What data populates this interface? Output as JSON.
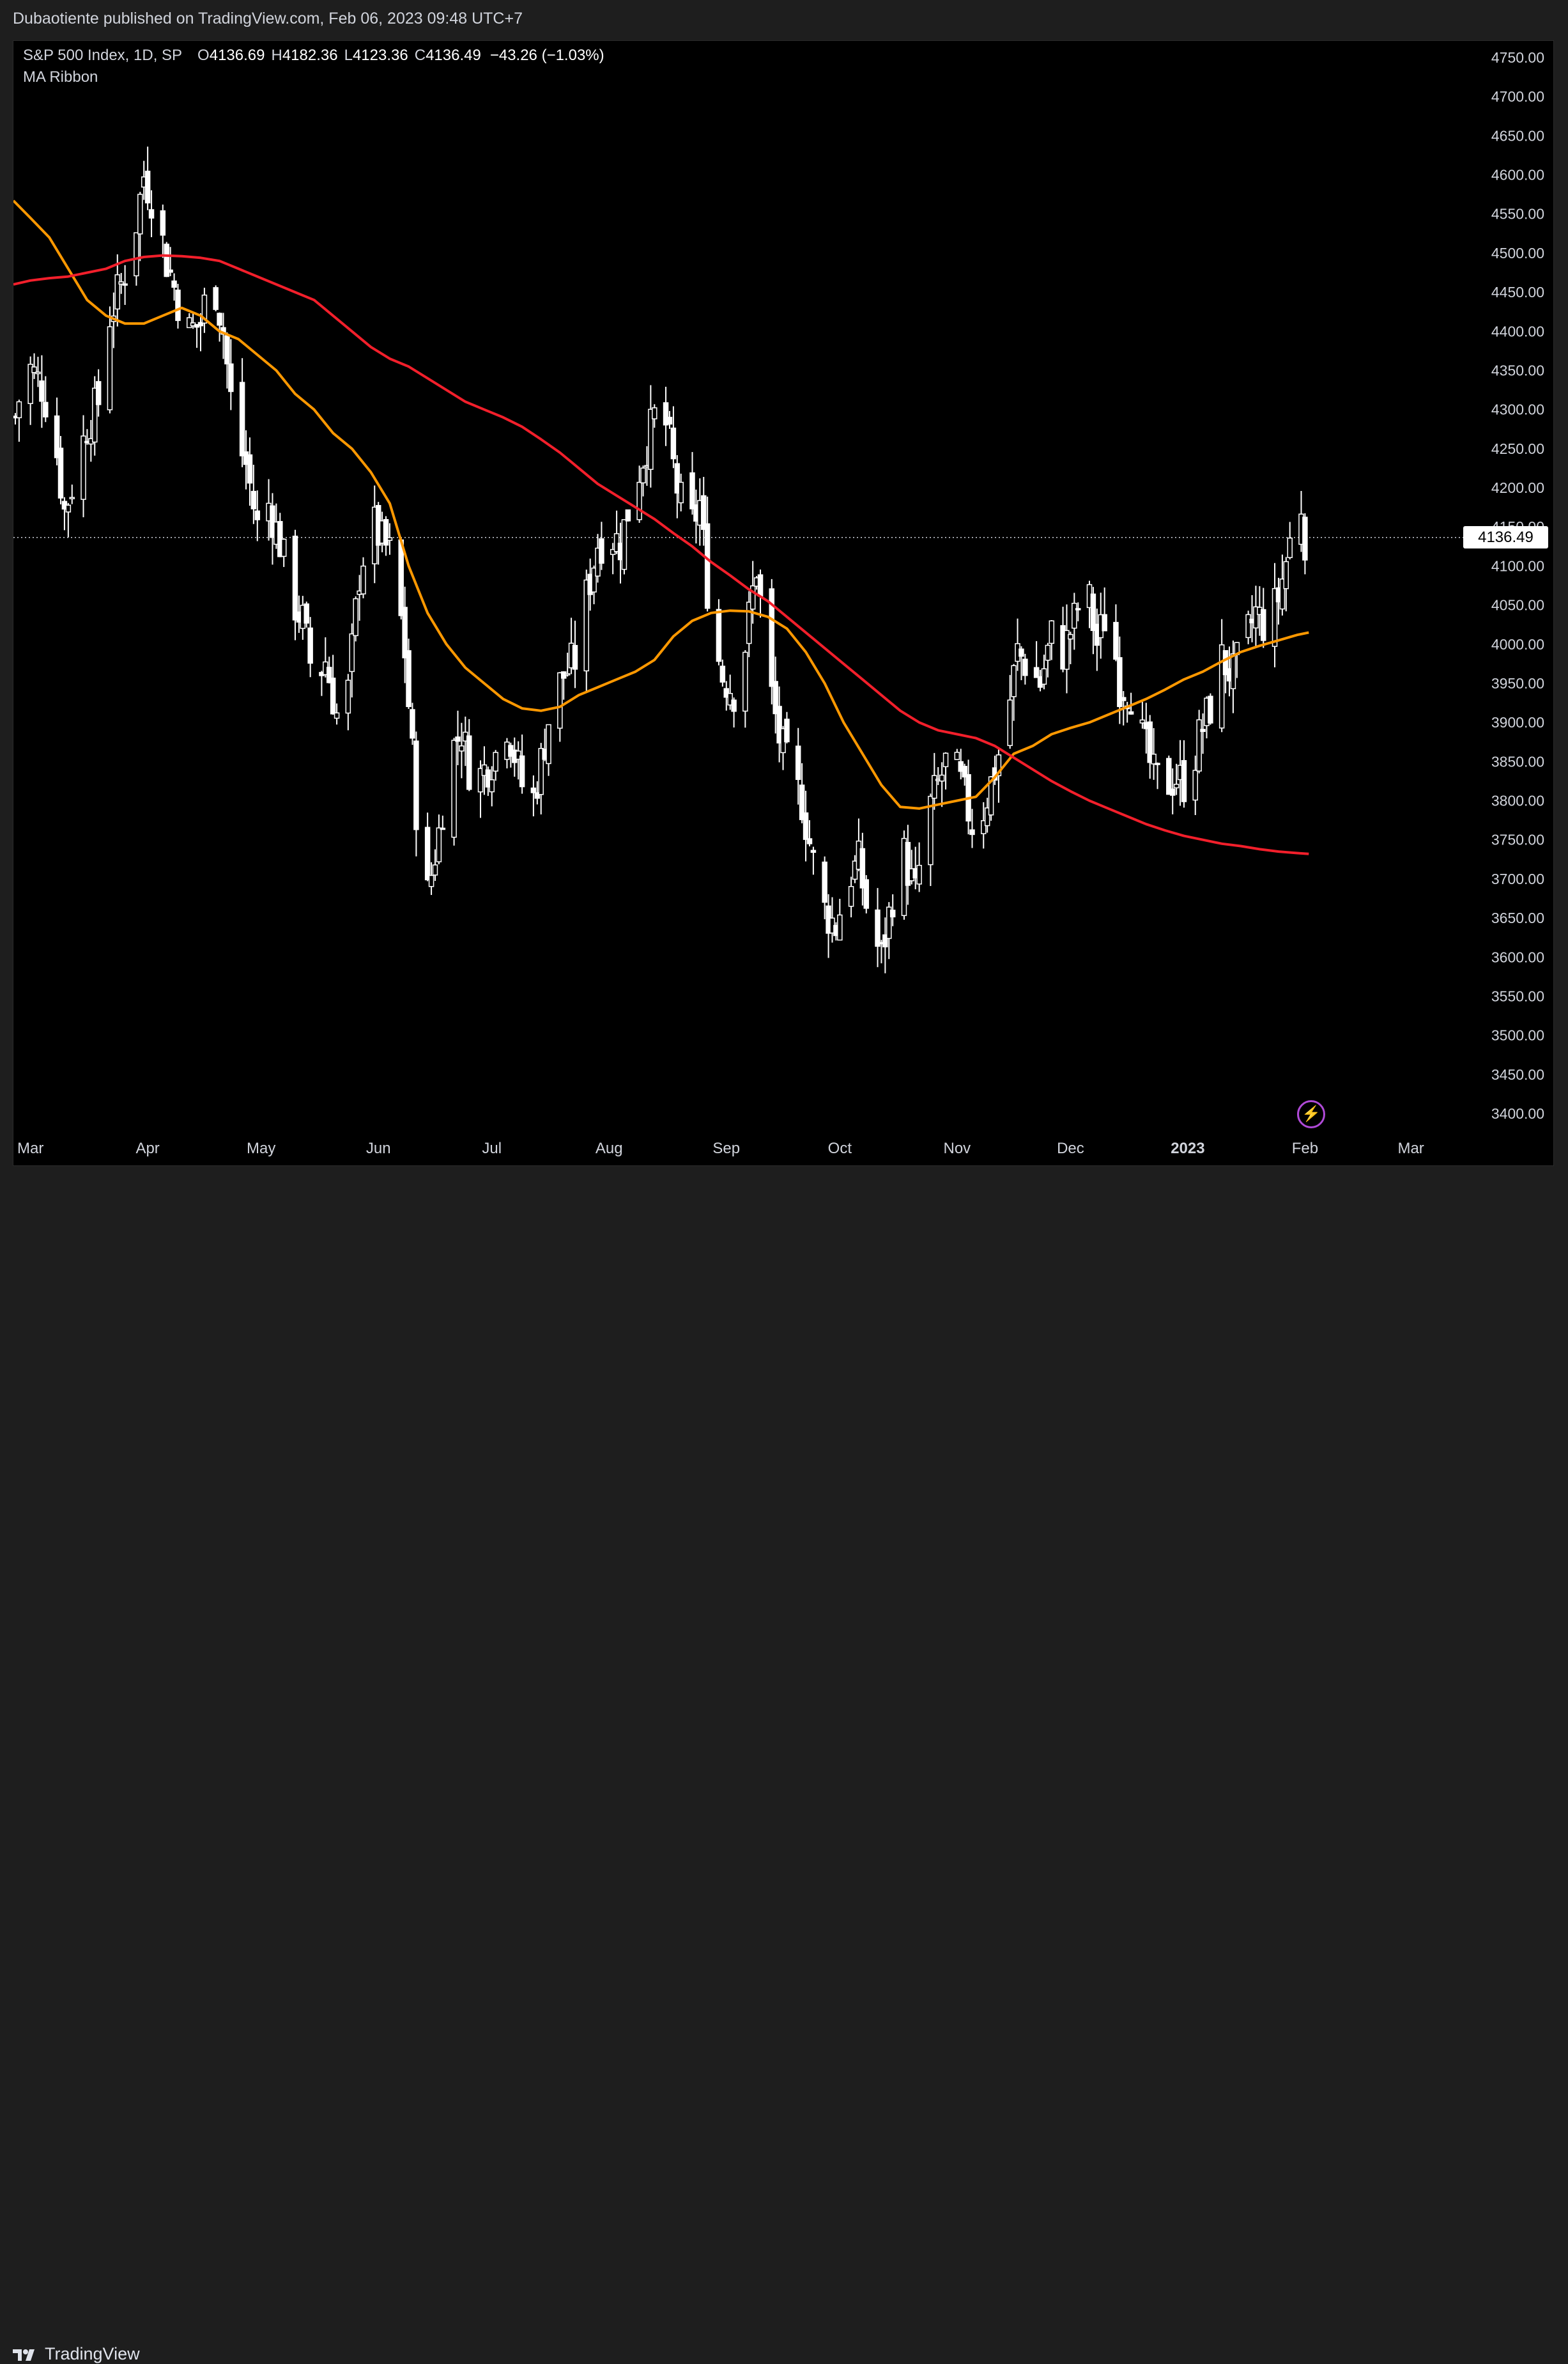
{
  "header": {
    "published_text": "Dubaotiente published on TradingView.com, Feb 06, 2023 09:48 UTC+7"
  },
  "legend": {
    "symbol": "S&P 500 Index, 1D, SP",
    "open_label": "O",
    "open": "4136.69",
    "high_label": "H",
    "high": "4182.36",
    "low_label": "L",
    "low": "4123.36",
    "close_label": "C",
    "close": "4136.49",
    "change": "−43.26 (−1.03%)",
    "indicator": "MA Ribbon"
  },
  "last_price_tag": "4136.49",
  "footer": {
    "brand": "TradingView",
    "logo_icon": "tradingview-logo-icon"
  },
  "colors": {
    "background": "#000000",
    "candle": "#ffffff",
    "ma_fast": "#ff9800",
    "ma_slow": "#f21f2b",
    "accent_bolt": "#b04ad8"
  },
  "chart_data": {
    "type": "candlestick",
    "symbol": "S&P 500 Index",
    "interval": "1D",
    "ylim": [
      3400,
      4750
    ],
    "y_ticks": [
      "4750.00",
      "4700.00",
      "4650.00",
      "4600.00",
      "4550.00",
      "4500.00",
      "4450.00",
      "4400.00",
      "4350.00",
      "4300.00",
      "4250.00",
      "4200.00",
      "4150.00",
      "4100.00",
      "4050.00",
      "4000.00",
      "3950.00",
      "3900.00",
      "3850.00",
      "3800.00",
      "3750.00",
      "3700.00",
      "3650.00",
      "3600.00",
      "3550.00",
      "3500.00",
      "3450.00",
      "3400.00"
    ],
    "x_ticks": [
      {
        "label": "Mar",
        "day": 0
      },
      {
        "label": "Apr",
        "day": 31
      },
      {
        "label": "May",
        "day": 61
      },
      {
        "label": "Jun",
        "day": 92
      },
      {
        "label": "Jul",
        "day": 122
      },
      {
        "label": "Aug",
        "day": 153
      },
      {
        "label": "Sep",
        "day": 184
      },
      {
        "label": "Oct",
        "day": 214
      },
      {
        "label": "Nov",
        "day": 245
      },
      {
        "label": "Dec",
        "day": 275
      },
      {
        "label": "2023",
        "day": 306,
        "bold": true
      },
      {
        "label": "Feb",
        "day": 337
      },
      {
        "label": "Mar",
        "day": 365
      }
    ],
    "x_range_days": [
      -4.5,
      379
    ],
    "last_price": 4136.49,
    "series": [
      {
        "name": "Price",
        "kind": "ohlc_approx",
        "points": [
          [
            -4,
            4290
          ],
          [
            -1,
            4360
          ],
          [
            3,
            4330
          ],
          [
            6,
            4280
          ],
          [
            9,
            4170
          ],
          [
            12,
            4220
          ],
          [
            15,
            4280
          ],
          [
            18,
            4310
          ],
          [
            21,
            4420
          ],
          [
            24,
            4460
          ],
          [
            27,
            4510
          ],
          [
            30,
            4600
          ],
          [
            33,
            4560
          ],
          [
            36,
            4490
          ],
          [
            39,
            4440
          ],
          [
            42,
            4400
          ],
          [
            45,
            4410
          ],
          [
            48,
            4480
          ],
          [
            51,
            4400
          ],
          [
            54,
            4270
          ],
          [
            57,
            4230
          ],
          [
            60,
            4150
          ],
          [
            63,
            4180
          ],
          [
            66,
            4130
          ],
          [
            69,
            4060
          ],
          [
            72,
            4030
          ],
          [
            75,
            3950
          ],
          [
            78,
            3980
          ],
          [
            81,
            3910
          ],
          [
            84,
            3940
          ],
          [
            87,
            4090
          ],
          [
            90,
            4160
          ],
          [
            93,
            4130
          ],
          [
            96,
            4110
          ],
          [
            99,
            3990
          ],
          [
            102,
            3790
          ],
          [
            105,
            3680
          ],
          [
            108,
            3760
          ],
          [
            111,
            3860
          ],
          [
            114,
            3890
          ],
          [
            117,
            3820
          ],
          [
            120,
            3840
          ],
          [
            123,
            3860
          ],
          [
            126,
            3900
          ],
          [
            129,
            3840
          ],
          [
            132,
            3780
          ],
          [
            135,
            3850
          ],
          [
            138,
            3930
          ],
          [
            141,
            3960
          ],
          [
            144,
            3980
          ],
          [
            147,
            4060
          ],
          [
            150,
            4130
          ],
          [
            153,
            4140
          ],
          [
            156,
            4130
          ],
          [
            159,
            4190
          ],
          [
            162,
            4240
          ],
          [
            165,
            4290
          ],
          [
            168,
            4280
          ],
          [
            171,
            4200
          ],
          [
            174,
            4140
          ],
          [
            177,
            4180
          ],
          [
            180,
            4020
          ],
          [
            183,
            3960
          ],
          [
            186,
            3940
          ],
          [
            189,
            4000
          ],
          [
            192,
            4100
          ],
          [
            195,
            3960
          ],
          [
            198,
            3880
          ],
          [
            201,
            3830
          ],
          [
            204,
            3800
          ],
          [
            207,
            3720
          ],
          [
            210,
            3660
          ],
          [
            213,
            3640
          ],
          [
            216,
            3700
          ],
          [
            219,
            3720
          ],
          [
            222,
            3640
          ],
          [
            225,
            3600
          ],
          [
            228,
            3680
          ],
          [
            231,
            3730
          ],
          [
            234,
            3680
          ],
          [
            237,
            3780
          ],
          [
            240,
            3820
          ],
          [
            243,
            3860
          ],
          [
            246,
            3820
          ],
          [
            249,
            3770
          ],
          [
            252,
            3790
          ],
          [
            255,
            3840
          ],
          [
            258,
            3900
          ],
          [
            261,
            3990
          ],
          [
            264,
            3970
          ],
          [
            267,
            3950
          ],
          [
            270,
            4010
          ],
          [
            273,
            3990
          ],
          [
            276,
            4030
          ],
          [
            279,
            4080
          ],
          [
            282,
            4000
          ],
          [
            285,
            4050
          ],
          [
            288,
            3950
          ],
          [
            291,
            3940
          ],
          [
            294,
            3880
          ],
          [
            297,
            3830
          ],
          [
            300,
            3820
          ],
          [
            303,
            3830
          ],
          [
            306,
            3820
          ],
          [
            309,
            3880
          ],
          [
            312,
            3920
          ],
          [
            315,
            3980
          ],
          [
            318,
            3960
          ],
          [
            321,
            4000
          ],
          [
            324,
            4040
          ],
          [
            327,
            4020
          ],
          [
            330,
            4060
          ],
          [
            333,
            4130
          ],
          [
            336,
            4180
          ],
          [
            337,
            4136.49
          ]
        ]
      },
      {
        "name": "MA (fast)",
        "color": "#ff9800",
        "points": [
          [
            -4.5,
            4567
          ],
          [
            0,
            4545
          ],
          [
            5,
            4520
          ],
          [
            10,
            4480
          ],
          [
            15,
            4440
          ],
          [
            20,
            4420
          ],
          [
            25,
            4410
          ],
          [
            30,
            4410
          ],
          [
            35,
            4420
          ],
          [
            40,
            4430
          ],
          [
            45,
            4420
          ],
          [
            50,
            4400
          ],
          [
            55,
            4390
          ],
          [
            60,
            4370
          ],
          [
            65,
            4350
          ],
          [
            70,
            4320
          ],
          [
            75,
            4300
          ],
          [
            80,
            4270
          ],
          [
            85,
            4250
          ],
          [
            90,
            4220
          ],
          [
            95,
            4180
          ],
          [
            100,
            4100
          ],
          [
            105,
            4040
          ],
          [
            110,
            4000
          ],
          [
            115,
            3970
          ],
          [
            120,
            3950
          ],
          [
            125,
            3930
          ],
          [
            130,
            3918
          ],
          [
            135,
            3915
          ],
          [
            140,
            3920
          ],
          [
            145,
            3935
          ],
          [
            150,
            3945
          ],
          [
            155,
            3955
          ],
          [
            160,
            3965
          ],
          [
            165,
            3980
          ],
          [
            170,
            4010
          ],
          [
            175,
            4030
          ],
          [
            180,
            4040
          ],
          [
            185,
            4043
          ],
          [
            190,
            4042
          ],
          [
            195,
            4035
          ],
          [
            200,
            4020
          ],
          [
            205,
            3990
          ],
          [
            210,
            3950
          ],
          [
            215,
            3900
          ],
          [
            220,
            3860
          ],
          [
            225,
            3820
          ],
          [
            230,
            3792
          ],
          [
            235,
            3790
          ],
          [
            240,
            3795
          ],
          [
            245,
            3800
          ],
          [
            250,
            3805
          ],
          [
            255,
            3830
          ],
          [
            260,
            3860
          ],
          [
            265,
            3870
          ],
          [
            270,
            3885
          ],
          [
            275,
            3893
          ],
          [
            280,
            3900
          ],
          [
            285,
            3910
          ],
          [
            290,
            3920
          ],
          [
            295,
            3930
          ],
          [
            300,
            3942
          ],
          [
            305,
            3955
          ],
          [
            310,
            3965
          ],
          [
            315,
            3978
          ],
          [
            320,
            3990
          ],
          [
            325,
            3998
          ],
          [
            330,
            4005
          ],
          [
            335,
            4012
          ],
          [
            338,
            4015
          ]
        ]
      },
      {
        "name": "MA (slow)",
        "color": "#f21f2b",
        "points": [
          [
            -4.5,
            4460
          ],
          [
            0,
            4465
          ],
          [
            5,
            4468
          ],
          [
            10,
            4470
          ],
          [
            15,
            4475
          ],
          [
            20,
            4480
          ],
          [
            25,
            4490
          ],
          [
            30,
            4495
          ],
          [
            35,
            4497
          ],
          [
            40,
            4496
          ],
          [
            45,
            4494
          ],
          [
            50,
            4490
          ],
          [
            55,
            4480
          ],
          [
            60,
            4470
          ],
          [
            65,
            4460
          ],
          [
            70,
            4450
          ],
          [
            75,
            4440
          ],
          [
            80,
            4420
          ],
          [
            85,
            4400
          ],
          [
            90,
            4380
          ],
          [
            95,
            4365
          ],
          [
            100,
            4355
          ],
          [
            105,
            4340
          ],
          [
            110,
            4325
          ],
          [
            115,
            4310
          ],
          [
            120,
            4300
          ],
          [
            125,
            4290
          ],
          [
            130,
            4278
          ],
          [
            135,
            4262
          ],
          [
            140,
            4245
          ],
          [
            145,
            4225
          ],
          [
            150,
            4205
          ],
          [
            155,
            4190
          ],
          [
            160,
            4175
          ],
          [
            165,
            4160
          ],
          [
            170,
            4142
          ],
          [
            175,
            4125
          ],
          [
            180,
            4105
          ],
          [
            185,
            4088
          ],
          [
            190,
            4070
          ],
          [
            195,
            4055
          ],
          [
            200,
            4035
          ],
          [
            205,
            4015
          ],
          [
            210,
            3995
          ],
          [
            215,
            3975
          ],
          [
            220,
            3955
          ],
          [
            225,
            3935
          ],
          [
            230,
            3915
          ],
          [
            235,
            3900
          ],
          [
            240,
            3890
          ],
          [
            245,
            3885
          ],
          [
            250,
            3880
          ],
          [
            255,
            3870
          ],
          [
            260,
            3855
          ],
          [
            265,
            3840
          ],
          [
            270,
            3825
          ],
          [
            275,
            3812
          ],
          [
            280,
            3800
          ],
          [
            285,
            3790
          ],
          [
            290,
            3780
          ],
          [
            295,
            3770
          ],
          [
            300,
            3762
          ],
          [
            305,
            3755
          ],
          [
            310,
            3750
          ],
          [
            315,
            3745
          ],
          [
            320,
            3742
          ],
          [
            325,
            3738
          ],
          [
            330,
            3735
          ],
          [
            335,
            3733
          ],
          [
            338,
            3732
          ]
        ]
      }
    ],
    "grid": false,
    "legend_position": "top-left"
  }
}
